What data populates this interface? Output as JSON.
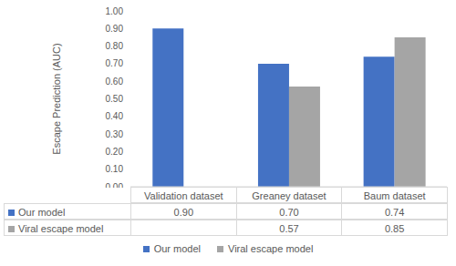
{
  "chart_data": {
    "type": "bar",
    "ylabel": "Escape Prediction (AUC)",
    "categories": [
      "Validation dataset",
      "Greaney dataset",
      "Baum dataset"
    ],
    "series": [
      {
        "name": "Our model",
        "color": "#4472c4",
        "values": [
          0.9,
          0.7,
          0.74
        ],
        "value_labels": [
          "0.90",
          "0.70",
          "0.74"
        ]
      },
      {
        "name": "Viral escape model",
        "color": "#a5a5a5",
        "values": [
          null,
          0.57,
          0.85
        ],
        "value_labels": [
          null,
          "0.57",
          "0.85"
        ]
      }
    ],
    "ylim": [
      0,
      1
    ],
    "yticks": [
      {
        "value": 0,
        "label": "0.00"
      },
      {
        "value": 0.1,
        "label": "0.10"
      },
      {
        "value": 0.2,
        "label": "0.20"
      },
      {
        "value": 0.3,
        "label": "0.30"
      },
      {
        "value": 0.4,
        "label": "0.40"
      },
      {
        "value": 0.5,
        "label": "0.50"
      },
      {
        "value": 0.6,
        "label": "0.60"
      },
      {
        "value": 0.7,
        "label": "0.70"
      },
      {
        "value": 0.8,
        "label": "0.80"
      },
      {
        "value": 0.9,
        "label": "0.90"
      },
      {
        "value": 1,
        "label": "1.00"
      }
    ],
    "grid": false,
    "legend": "bottom"
  }
}
